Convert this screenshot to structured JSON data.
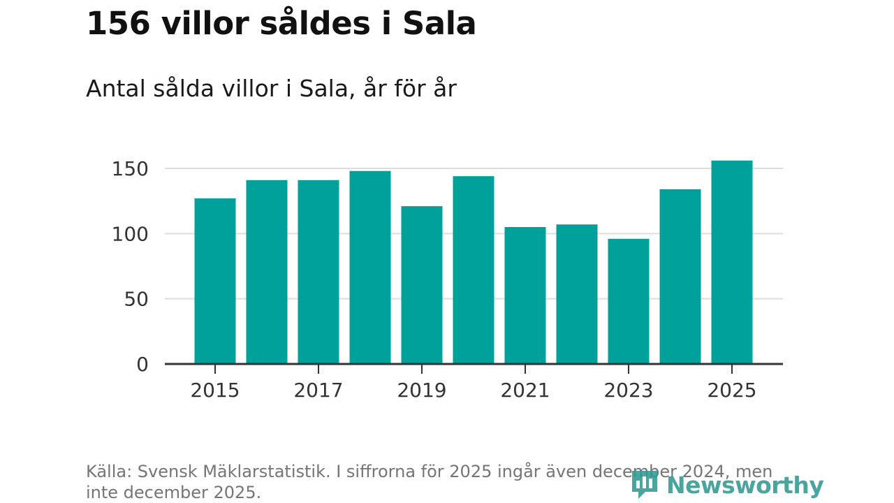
{
  "title": "156 villor såldes i Sala",
  "subtitle": "Antal sålda villor i Sala, år för år",
  "source": "Källa: Svensk Mäklarstatistik. I siffrorna för 2025 ingår även december 2024, men inte december 2025.",
  "logo": {
    "text": "Newsworthy",
    "icon": "newsworthy-logo-icon",
    "color": "#2f9a92"
  },
  "colors": {
    "bar": "#00a19a",
    "grid": "#dddddd",
    "axis": "#333333",
    "text": "#333333"
  },
  "chart_data": {
    "type": "bar",
    "categories": [
      "2015",
      "2016",
      "2017",
      "2018",
      "2019",
      "2020",
      "2021",
      "2022",
      "2023",
      "2024",
      "2025"
    ],
    "values": [
      127,
      141,
      141,
      148,
      121,
      144,
      105,
      107,
      96,
      134,
      156
    ],
    "xtick_labels": [
      "2015",
      "2017",
      "2019",
      "2021",
      "2023",
      "2025"
    ],
    "yticks": [
      0,
      50,
      100,
      150
    ],
    "ylim": [
      0,
      150
    ],
    "grid": true,
    "legend": "none",
    "xlabel": "",
    "ylabel": ""
  }
}
